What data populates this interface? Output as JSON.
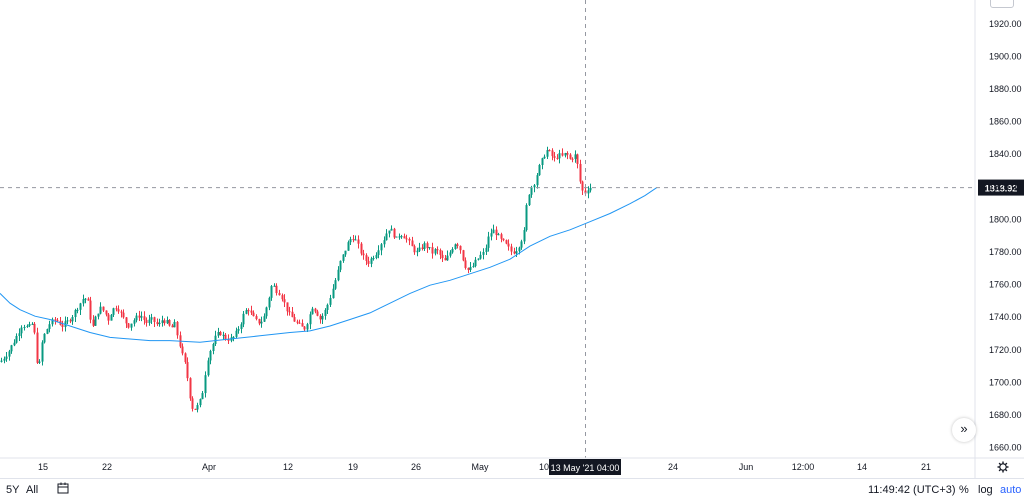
{
  "chart_data": {
    "type": "candlestick",
    "y_axis": {
      "ticks": [
        1660,
        1680,
        1700,
        1720,
        1740,
        1760,
        1780,
        1800,
        1820,
        1840,
        1860,
        1880,
        1900,
        1920
      ],
      "range": [
        1653,
        1934
      ]
    },
    "x_axis_ticks": [
      "15",
      "22",
      "Apr",
      "12",
      "19",
      "26",
      "May",
      "10",
      "24",
      "Jun",
      "12:00",
      "14",
      "21"
    ],
    "current_price": "1818.92",
    "crosshair_label": "13 May '21   04:00",
    "price_path": [
      [
        0,
        1712
      ],
      [
        8,
        1718
      ],
      [
        15,
        1726
      ],
      [
        22,
        1735
      ],
      [
        28,
        1733
      ],
      [
        33,
        1736
      ],
      [
        36,
        1718
      ],
      [
        38,
        1703
      ],
      [
        41,
        1722
      ],
      [
        45,
        1730
      ],
      [
        50,
        1736
      ],
      [
        56,
        1738
      ],
      [
        62,
        1734
      ],
      [
        68,
        1737
      ],
      [
        72,
        1740
      ],
      [
        75,
        1743
      ],
      [
        80,
        1748
      ],
      [
        84,
        1752
      ],
      [
        88,
        1748
      ],
      [
        92,
        1732
      ],
      [
        97,
        1742
      ],
      [
        100,
        1745
      ],
      [
        104,
        1743
      ],
      [
        108,
        1738
      ],
      [
        112,
        1744
      ],
      [
        117,
        1746
      ],
      [
        122,
        1740
      ],
      [
        128,
        1734
      ],
      [
        134,
        1738
      ],
      [
        140,
        1741
      ],
      [
        146,
        1736
      ],
      [
        152,
        1738
      ],
      [
        158,
        1734
      ],
      [
        162,
        1738
      ],
      [
        167,
        1736
      ],
      [
        171,
        1732
      ],
      [
        174,
        1736
      ],
      [
        178,
        1726
      ],
      [
        182,
        1716
      ],
      [
        186,
        1708
      ],
      [
        189,
        1693
      ],
      [
        192,
        1684
      ],
      [
        196,
        1683
      ],
      [
        200,
        1688
      ],
      [
        203,
        1695
      ],
      [
        205,
        1705
      ],
      [
        208,
        1716
      ],
      [
        212,
        1722
      ],
      [
        216,
        1728
      ],
      [
        220,
        1730
      ],
      [
        224,
        1727
      ],
      [
        228,
        1726
      ],
      [
        232,
        1726
      ],
      [
        236,
        1730
      ],
      [
        240,
        1735
      ],
      [
        244,
        1742
      ],
      [
        248,
        1745
      ],
      [
        252,
        1740
      ],
      [
        256,
        1737
      ],
      [
        260,
        1736
      ],
      [
        264,
        1740
      ],
      [
        268,
        1750
      ],
      [
        272,
        1760
      ],
      [
        276,
        1756
      ],
      [
        280,
        1754
      ],
      [
        284,
        1748
      ],
      [
        288,
        1742
      ],
      [
        292,
        1739
      ],
      [
        296,
        1736
      ],
      [
        300,
        1734
      ],
      [
        304,
        1732
      ],
      [
        308,
        1738
      ],
      [
        312,
        1746
      ],
      [
        316,
        1743
      ],
      [
        320,
        1738
      ],
      [
        324,
        1742
      ],
      [
        328,
        1748
      ],
      [
        332,
        1756
      ],
      [
        336,
        1764
      ],
      [
        340,
        1773
      ],
      [
        344,
        1779
      ],
      [
        348,
        1785
      ],
      [
        352,
        1789
      ],
      [
        356,
        1786
      ],
      [
        360,
        1780
      ],
      [
        364,
        1775
      ],
      [
        368,
        1773
      ],
      [
        372,
        1776
      ],
      [
        376,
        1779
      ],
      [
        380,
        1784
      ],
      [
        384,
        1788
      ],
      [
        388,
        1794
      ],
      [
        392,
        1792
      ],
      [
        396,
        1787
      ],
      [
        400,
        1791
      ],
      [
        404,
        1789
      ],
      [
        408,
        1786
      ],
      [
        412,
        1782
      ],
      [
        416,
        1779
      ],
      [
        420,
        1781
      ],
      [
        424,
        1784
      ],
      [
        428,
        1782
      ],
      [
        432,
        1779
      ],
      [
        436,
        1781
      ],
      [
        440,
        1777
      ],
      [
        444,
        1773
      ],
      [
        448,
        1777
      ],
      [
        452,
        1782
      ],
      [
        456,
        1786
      ],
      [
        460,
        1781
      ],
      [
        464,
        1772
      ],
      [
        468,
        1768
      ],
      [
        472,
        1770
      ],
      [
        476,
        1774
      ],
      [
        480,
        1777
      ],
      [
        484,
        1779
      ],
      [
        488,
        1788
      ],
      [
        492,
        1793
      ],
      [
        496,
        1791
      ],
      [
        500,
        1787
      ],
      [
        504,
        1785
      ],
      [
        508,
        1782
      ],
      [
        512,
        1779
      ],
      [
        516,
        1781
      ],
      [
        520,
        1785
      ],
      [
        524,
        1792
      ],
      [
        527,
        1812
      ],
      [
        530,
        1818
      ],
      [
        534,
        1822
      ],
      [
        538,
        1830
      ],
      [
        542,
        1836
      ],
      [
        546,
        1842
      ],
      [
        550,
        1840
      ],
      [
        554,
        1836
      ],
      [
        558,
        1839
      ],
      [
        562,
        1838
      ],
      [
        566,
        1840
      ],
      [
        570,
        1836
      ],
      [
        574,
        1839
      ],
      [
        576,
        1838
      ],
      [
        578,
        1830
      ],
      [
        580,
        1822
      ],
      [
        582,
        1817
      ],
      [
        585,
        1816
      ],
      [
        588,
        1819
      ],
      [
        593,
        1819
      ]
    ],
    "moving_average": [
      [
        0,
        1754
      ],
      [
        10,
        1748
      ],
      [
        20,
        1744
      ],
      [
        35,
        1740
      ],
      [
        50,
        1738
      ],
      [
        70,
        1734
      ],
      [
        90,
        1730
      ],
      [
        110,
        1727
      ],
      [
        130,
        1726
      ],
      [
        150,
        1725
      ],
      [
        170,
        1725
      ],
      [
        200,
        1724
      ],
      [
        230,
        1726
      ],
      [
        260,
        1728
      ],
      [
        290,
        1730
      ],
      [
        310,
        1731
      ],
      [
        330,
        1734
      ],
      [
        350,
        1738
      ],
      [
        370,
        1742
      ],
      [
        390,
        1748
      ],
      [
        410,
        1754
      ],
      [
        430,
        1759
      ],
      [
        450,
        1762
      ],
      [
        470,
        1766
      ],
      [
        490,
        1770
      ],
      [
        510,
        1775
      ],
      [
        530,
        1783
      ],
      [
        550,
        1789
      ],
      [
        570,
        1793
      ],
      [
        590,
        1798
      ],
      [
        610,
        1803
      ],
      [
        630,
        1809
      ],
      [
        645,
        1814
      ],
      [
        657,
        1819
      ]
    ]
  },
  "bottom_bar": {
    "range_5y": "5Y",
    "range_all": "All",
    "calendar_icon": "calendar-icon",
    "time": "11:49:42 (UTC+3)",
    "percent": "%",
    "log": "log",
    "auto": "auto"
  },
  "colors": {
    "up": "#089981",
    "down": "#f23645",
    "ma": "#2196f3",
    "current_price_bg": "#131722"
  }
}
